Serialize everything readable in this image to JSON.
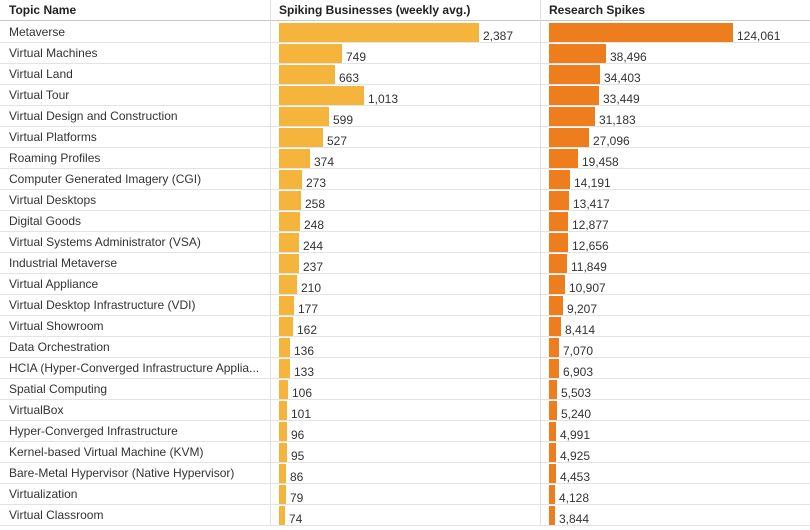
{
  "header": {
    "col_topic": "Topic Name",
    "col_businesses": "Spiking Businesses (weekly avg.)",
    "col_research": "Research Spikes"
  },
  "colors": {
    "businesses_bar": "#f5b43c",
    "research_bar": "#ee7d1e"
  },
  "chart_data": {
    "type": "bar",
    "categories": [
      "Metaverse",
      "Virtual Machines",
      "Virtual Land",
      "Virtual Tour",
      "Virtual Design and Construction",
      "Virtual Platforms",
      "Roaming Profiles",
      "Computer Generated Imagery (CGI)",
      "Virtual Desktops",
      "Digital Goods",
      "Virtual Systems Administrator (VSA)",
      "Industrial Metaverse",
      "Virtual Appliance",
      "Virtual Desktop Infrastructure (VDI)",
      "Virtual Showroom",
      "Data Orchestration",
      "HCIA (Hyper-Converged Infrastructure Applia...",
      "Spatial Computing",
      "VirtualBox",
      "Hyper-Converged Infrastructure",
      "Kernel-based Virtual Machine (KVM)",
      "Bare-Metal Hypervisor (Native Hypervisor)",
      "Virtualization",
      "Virtual Classroom"
    ],
    "series": [
      {
        "name": "Spiking Businesses (weekly avg.)",
        "values": [
          2387,
          749,
          663,
          1013,
          599,
          527,
          374,
          273,
          258,
          248,
          244,
          237,
          210,
          177,
          162,
          136,
          133,
          106,
          101,
          96,
          95,
          86,
          79,
          74
        ],
        "labels": [
          "2,387",
          "749",
          "663",
          "1,013",
          "599",
          "527",
          "374",
          "273",
          "258",
          "248",
          "244",
          "237",
          "210",
          "177",
          "162",
          "136",
          "133",
          "106",
          "101",
          "96",
          "95",
          "86",
          "79",
          "74"
        ],
        "max": 2387
      },
      {
        "name": "Research Spikes",
        "values": [
          124061,
          38496,
          34403,
          33449,
          31183,
          27096,
          19458,
          14191,
          13417,
          12877,
          12656,
          11849,
          10907,
          9207,
          8414,
          7070,
          6903,
          5503,
          5240,
          4991,
          4925,
          4453,
          4128,
          3844
        ],
        "labels": [
          "124,061",
          "38,496",
          "34,403",
          "33,449",
          "31,183",
          "27,096",
          "19,458",
          "14,191",
          "13,417",
          "12,877",
          "12,656",
          "11,849",
          "10,907",
          "9,207",
          "8,414",
          "7,070",
          "6,903",
          "5,503",
          "5,240",
          "4,991",
          "4,925",
          "4,453",
          "4,128",
          "3,844"
        ],
        "max": 124061
      }
    ]
  }
}
